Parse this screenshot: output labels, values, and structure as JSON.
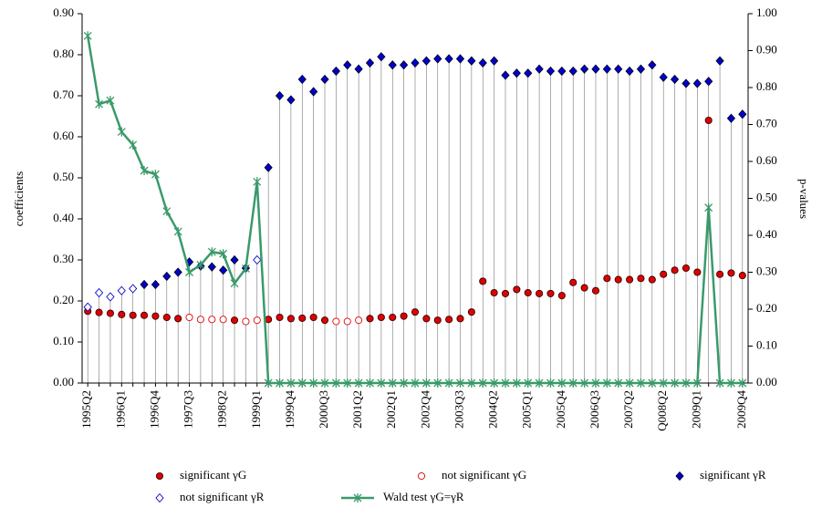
{
  "chart_data": {
    "type": "scatter",
    "ylabel": "coefficients",
    "y2label": "p-values",
    "categories": [
      "1995Q2",
      null,
      null,
      "1996Q1",
      null,
      null,
      "1996Q4",
      null,
      null,
      "1997Q3",
      null,
      null,
      "1998Q2",
      null,
      null,
      "1999Q1",
      null,
      null,
      "1999Q4",
      null,
      null,
      "2000Q3",
      null,
      null,
      "2001Q2",
      null,
      null,
      "2002Q1",
      null,
      null,
      "2002Q4",
      null,
      null,
      "2003Q3",
      null,
      null,
      "2004Q2",
      null,
      null,
      "2005Q1",
      null,
      null,
      "2005Q4",
      null,
      null,
      "2006Q3",
      null,
      null,
      "2007Q2",
      null,
      null,
      "Q008Q2",
      null,
      null,
      "2009Q1",
      null,
      null,
      null,
      "2009Q4"
    ],
    "ylim": [
      0,
      0.9
    ],
    "yticks": [
      {
        "value": 0,
        "label": "0.00"
      },
      {
        "value": 0.1,
        "label": "0.10"
      },
      {
        "value": 0.2,
        "label": "0.20"
      },
      {
        "value": 0.3,
        "label": "0.30"
      },
      {
        "value": 0.4,
        "label": "0.40"
      },
      {
        "value": 0.5,
        "label": "0.50"
      },
      {
        "value": 0.6,
        "label": "0.60"
      },
      {
        "value": 0.7,
        "label": "0.70"
      },
      {
        "value": 0.8,
        "label": "0.80"
      },
      {
        "value": 0.9,
        "label": "0.90"
      }
    ],
    "y2lim": [
      0,
      1
    ],
    "y2ticks": [
      {
        "value": 0,
        "label": "0.00"
      },
      {
        "value": 0.1,
        "label": "0.10"
      },
      {
        "value": 0.2,
        "label": "0.20"
      },
      {
        "value": 0.3,
        "label": "0.30"
      },
      {
        "value": 0.4,
        "label": "0.40"
      },
      {
        "value": 0.5,
        "label": "0.50"
      },
      {
        "value": 0.6,
        "label": "0.60"
      },
      {
        "value": 0.7,
        "label": "0.70"
      },
      {
        "value": 0.8,
        "label": "0.80"
      },
      {
        "value": 0.9,
        "label": "0.90"
      },
      {
        "value": 1,
        "label": "1.00"
      }
    ],
    "series": [
      {
        "name": "significant γG",
        "color": "#e00000",
        "marker": "circle",
        "filled": true,
        "values": [
          0.175,
          0.172,
          0.17,
          0.167,
          0.165,
          0.165,
          0.163,
          0.16,
          0.157,
          null,
          null,
          null,
          null,
          0.153,
          null,
          null,
          0.155,
          0.16,
          0.157,
          0.158,
          0.16,
          0.153,
          null,
          null,
          null,
          0.157,
          0.16,
          0.16,
          0.163,
          0.173,
          0.157,
          0.153,
          0.155,
          0.157,
          0.173,
          0.248,
          0.22,
          0.218,
          0.228,
          0.22,
          0.218,
          0.218,
          0.213,
          0.245,
          0.232,
          0.225,
          0.255,
          0.252,
          0.252,
          0.255,
          0.252,
          0.265,
          0.275,
          0.28,
          0.27,
          0.64,
          0.265,
          0.268,
          0.262
        ]
      },
      {
        "name": "not significant γG",
        "color": "#e00000",
        "marker": "circle",
        "filled": false,
        "values": [
          null,
          null,
          null,
          null,
          null,
          null,
          null,
          null,
          null,
          0.16,
          0.155,
          0.155,
          0.155,
          null,
          0.15,
          0.153,
          null,
          null,
          null,
          null,
          null,
          null,
          0.15,
          0.15,
          0.153,
          null,
          null,
          null,
          null,
          null,
          null,
          null,
          null,
          null,
          null,
          null,
          null,
          null,
          null,
          null,
          null,
          null,
          null,
          null,
          null,
          null,
          null,
          null,
          null,
          null,
          null,
          null,
          null,
          null,
          null,
          null,
          null,
          null,
          null
        ]
      },
      {
        "name": "significant γR",
        "color": "#0000cc",
        "marker": "diamond",
        "filled": true,
        "values": [
          null,
          null,
          null,
          null,
          null,
          0.24,
          0.24,
          0.26,
          0.27,
          0.295,
          0.285,
          0.283,
          0.275,
          0.3,
          0.28,
          null,
          0.525,
          0.7,
          0.69,
          0.74,
          0.71,
          0.74,
          0.76,
          0.775,
          0.765,
          0.78,
          0.795,
          0.775,
          0.775,
          0.78,
          0.785,
          0.79,
          0.79,
          0.79,
          0.785,
          0.78,
          0.785,
          0.75,
          0.755,
          0.755,
          0.765,
          0.76,
          0.76,
          0.76,
          0.765,
          0.765,
          0.765,
          0.765,
          0.76,
          0.765,
          0.775,
          0.745,
          0.74,
          0.73,
          0.73,
          0.735,
          0.785,
          0.645,
          0.655
        ]
      },
      {
        "name": "not significant γR",
        "color": "#0000cc",
        "marker": "diamond",
        "filled": false,
        "values": [
          0.185,
          0.22,
          0.21,
          0.225,
          0.23,
          null,
          null,
          null,
          null,
          null,
          null,
          null,
          null,
          null,
          null,
          0.3,
          null,
          null,
          null,
          null,
          null,
          null,
          null,
          null,
          null,
          null,
          null,
          null,
          null,
          null,
          null,
          null,
          null,
          null,
          null,
          null,
          null,
          null,
          null,
          null,
          null,
          null,
          null,
          null,
          null,
          null,
          null,
          null,
          null,
          null,
          null,
          null,
          null,
          null,
          null,
          null,
          null,
          null,
          null
        ]
      },
      {
        "name": "Wald test γG=γR",
        "color": "#3a9a6a",
        "marker": "star",
        "line": true,
        "axis": "y2",
        "values": [
          0.94,
          0.755,
          0.765,
          0.68,
          0.645,
          0.575,
          0.565,
          0.465,
          0.41,
          0.3,
          0.32,
          0.355,
          0.35,
          0.27,
          0.31,
          0.545,
          0,
          0,
          0,
          0,
          0,
          0,
          0,
          0,
          0,
          0,
          0,
          0,
          0,
          0,
          0,
          0,
          0,
          0,
          0,
          0,
          0,
          0,
          0,
          0,
          0,
          0,
          0,
          0,
          0,
          0,
          0,
          0,
          0,
          0,
          0,
          0,
          0,
          0,
          0,
          0.475,
          0,
          0,
          0
        ]
      }
    ]
  }
}
